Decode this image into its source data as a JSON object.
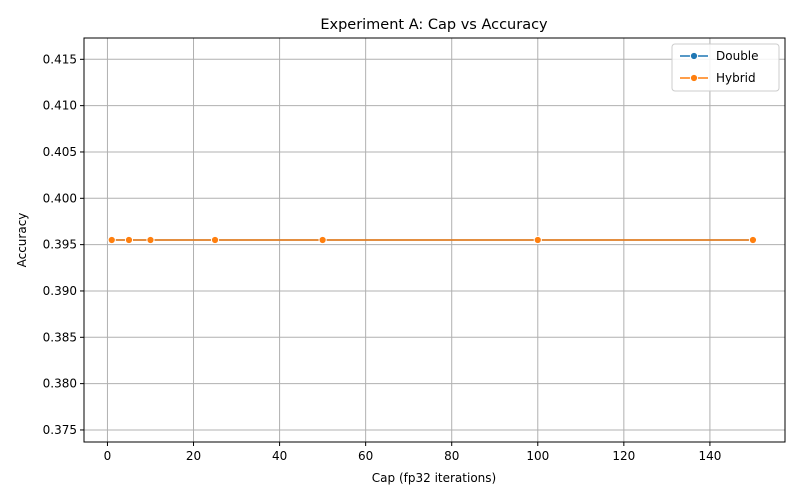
{
  "chart_data": {
    "type": "line",
    "title": "Experiment A: Cap vs Accuracy",
    "xlabel": "Cap (fp32 iterations)",
    "ylabel": "Accuracy",
    "xlim": [
      -5.45,
      157.45
    ],
    "ylim": [
      0.3737,
      0.4173
    ],
    "xticks": [
      0,
      20,
      40,
      60,
      80,
      100,
      120,
      140
    ],
    "yticks": [
      0.375,
      0.38,
      0.385,
      0.39,
      0.395,
      0.4,
      0.405,
      0.41,
      0.415
    ],
    "grid": true,
    "legend_position": "top-right",
    "x": [
      1,
      5,
      10,
      25,
      50,
      100,
      150
    ],
    "series": [
      {
        "name": "Double",
        "color": "#1f77b4",
        "marker": "circle",
        "values": [
          0.3955,
          0.3955,
          0.3955,
          0.3955,
          0.3955,
          0.3955,
          0.3955
        ]
      },
      {
        "name": "Hybrid",
        "color": "#ff7f0e",
        "marker": "circle",
        "values": [
          0.3955,
          0.3955,
          0.3955,
          0.3955,
          0.3955,
          0.3955,
          0.3955
        ]
      }
    ]
  }
}
